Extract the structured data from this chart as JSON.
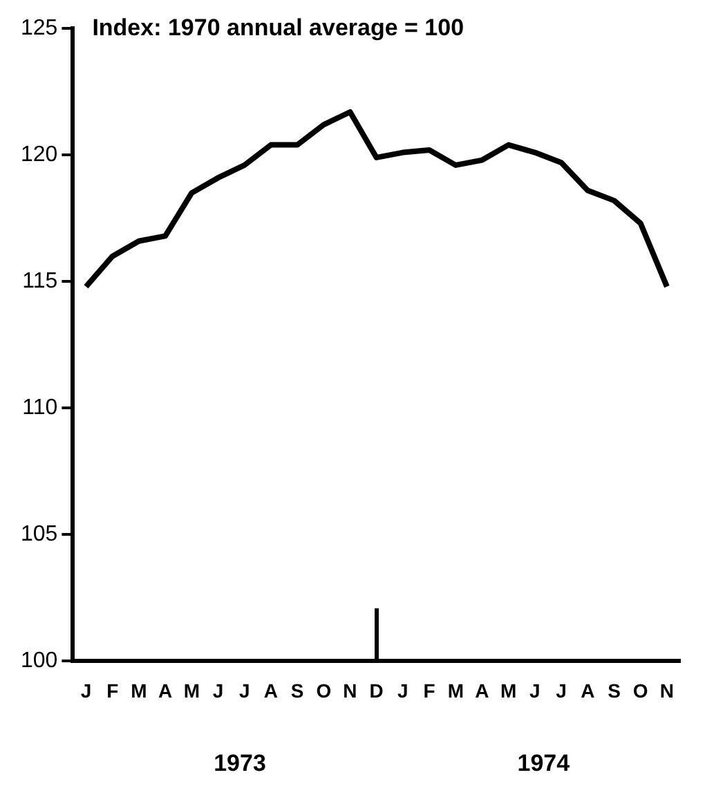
{
  "chart_data": {
    "type": "line",
    "title": "Index: 1970 annual average = 100",
    "categories": [
      "J",
      "F",
      "M",
      "A",
      "M",
      "J",
      "J",
      "A",
      "S",
      "O",
      "N",
      "D",
      "J",
      "F",
      "M",
      "A",
      "M",
      "J",
      "J",
      "A",
      "S",
      "O",
      "N"
    ],
    "series": [
      {
        "color": "#000000",
        "values": [
          114.8,
          116.0,
          116.6,
          116.8,
          118.5,
          119.1,
          119.6,
          120.4,
          120.4,
          121.2,
          121.7,
          119.9,
          120.1,
          120.2,
          119.6,
          119.8,
          120.4,
          120.1,
          119.7,
          118.6,
          118.2,
          117.3,
          114.8
        ]
      }
    ],
    "ylim": [
      100,
      125
    ],
    "yticks": [
      100,
      105,
      110,
      115,
      120,
      125
    ],
    "grid": false,
    "legend": false,
    "marker": "none",
    "line_style": "solid",
    "annotations": [
      "1973",
      "1974"
    ]
  }
}
